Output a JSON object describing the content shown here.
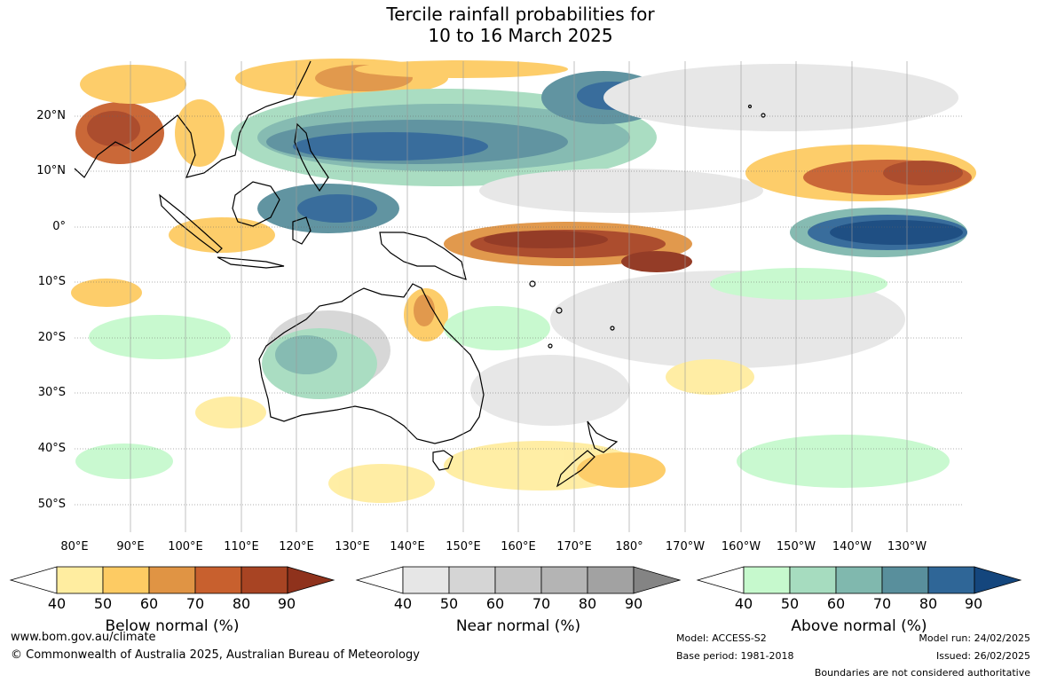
{
  "title": {
    "line1": "Tercile rainfall probabilities for",
    "line2": "10 to 16 March 2025"
  },
  "map": {
    "lat_labels": [
      "20°N",
      "10°N",
      "0°",
      "10°S",
      "20°S",
      "30°S",
      "40°S",
      "50°S"
    ],
    "lon_labels": [
      "80°E",
      "90°E",
      "100°E",
      "110°E",
      "120°E",
      "130°E",
      "140°E",
      "150°E",
      "160°E",
      "170°E",
      "180°",
      "170°W",
      "160°W",
      "150°W",
      "140°W",
      "130°W"
    ],
    "colors": {
      "ocean_base": "#ffffff",
      "coast": "#000000",
      "grid": "#666666"
    }
  },
  "legends": {
    "below": {
      "title": "Below normal (%)",
      "ticks": [
        "40",
        "50",
        "60",
        "70",
        "80",
        "90"
      ],
      "colors": [
        "#ffeda0",
        "#fdcb63",
        "#e09444",
        "#c8602e",
        "#a84423",
        "#8f321c"
      ]
    },
    "near": {
      "title": "Near normal (%)",
      "ticks": [
        "40",
        "50",
        "60",
        "70",
        "80",
        "90"
      ],
      "colors": [
        "#e6e6e6",
        "#d5d5d5",
        "#c4c4c4",
        "#b4b4b4",
        "#a2a2a2",
        "#848484"
      ]
    },
    "above": {
      "title": "Above normal (%)",
      "ticks": [
        "40",
        "50",
        "60",
        "70",
        "80",
        "90"
      ],
      "colors": [
        "#c6f9cd",
        "#a6dcbf",
        "#80b8ae",
        "#598f9c",
        "#2f6697",
        "#14467d"
      ]
    }
  },
  "footer": {
    "url": "www.bom.gov.au/climate",
    "copyright": "© Commonwealth of Australia 2025, Australian Bureau of Meteorology",
    "model": "Model: ACCESS-S2",
    "base_period": "Base period: 1981-2018",
    "model_run": "Model run: 24/02/2025",
    "issued": "Issued: 26/02/2025",
    "boundaries": "Boundaries are not considered authoritative"
  }
}
